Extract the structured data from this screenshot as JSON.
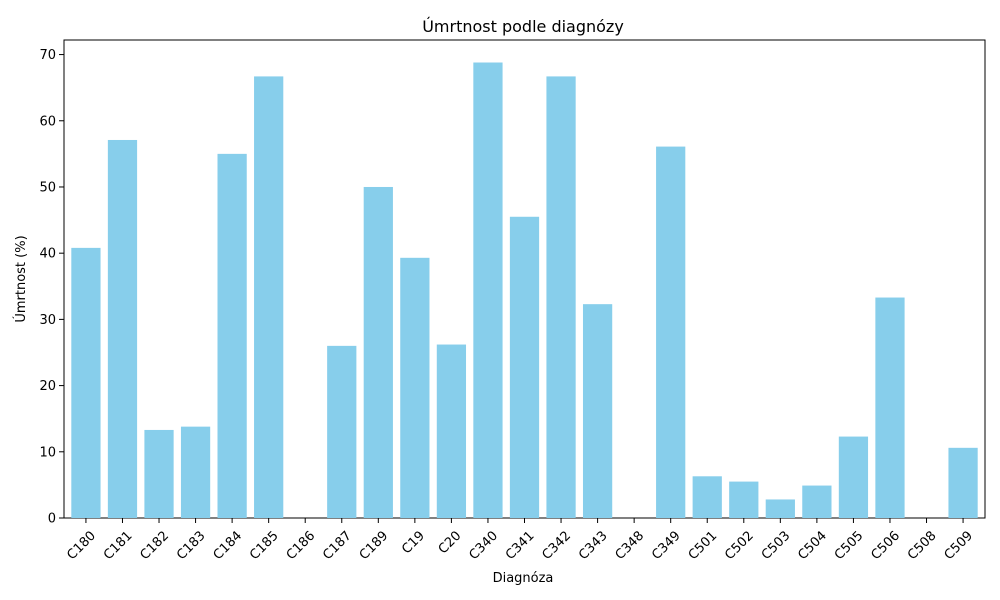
{
  "chart_data": {
    "type": "bar",
    "title": "Úmrtnost podle diagnózy",
    "xlabel": "Diagnóza",
    "ylabel": "Úmrtnost (%)",
    "categories": [
      "C180",
      "C181",
      "C182",
      "C183",
      "C184",
      "C185",
      "C186",
      "C187",
      "C189",
      "C19",
      "C20",
      "C340",
      "C341",
      "C342",
      "C343",
      "C348",
      "C349",
      "C501",
      "C502",
      "C503",
      "C504",
      "C505",
      "C506",
      "C508",
      "C509"
    ],
    "values": [
      40.8,
      57.1,
      13.3,
      13.8,
      55.0,
      66.7,
      0,
      26.0,
      50.0,
      39.3,
      26.2,
      68.8,
      45.5,
      66.7,
      32.3,
      0,
      56.1,
      6.3,
      5.5,
      2.8,
      4.9,
      12.3,
      33.3,
      0,
      10.6
    ],
    "ylim": [
      0,
      72.2
    ],
    "yticks": [
      0,
      10,
      20,
      30,
      40,
      50,
      60,
      70
    ],
    "bar_color": "#87CEEB",
    "grid": false,
    "legend": "none",
    "xtick_rotation": "45 degrees"
  }
}
